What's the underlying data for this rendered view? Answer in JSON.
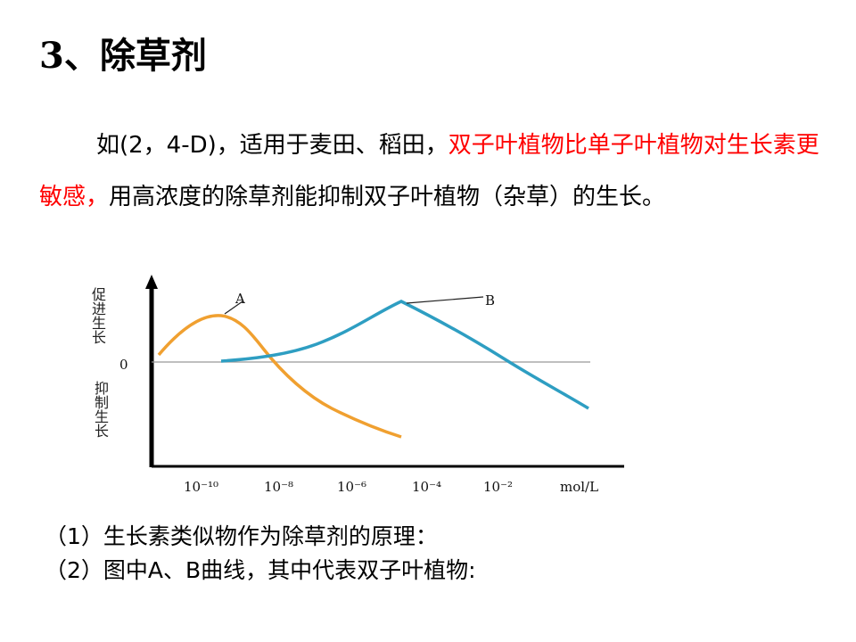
{
  "title": "3、除草剂",
  "paragraph": {
    "part1": "如(2，4-D)，适用于麦田、稻田，",
    "highlight": "双子叶植物比单子叶植物对生长素更敏感，",
    "part2": "用高浓度的除草剂能抑制双子叶植物（杂草）的生长。"
  },
  "graph": {
    "y_upper_label": [
      "促",
      "进",
      "生",
      "长"
    ],
    "y_lower_label": [
      "抑",
      "制",
      "生",
      "长"
    ],
    "zero_label": "0",
    "x_ticks": [
      "10⁻¹⁰",
      "10⁻⁸",
      "10⁻⁶",
      "10⁻⁴",
      "10⁻²",
      "mol/L"
    ],
    "curve_a_label": "A",
    "curve_b_label": "B",
    "curve_a_color": "#f0a030",
    "curve_b_color": "#2e9ec2"
  },
  "questions": [
    "（1）生长素类似物作为除草剂的原理：",
    "（2）图中A、B曲线，其中代表双子叶植物:"
  ]
}
